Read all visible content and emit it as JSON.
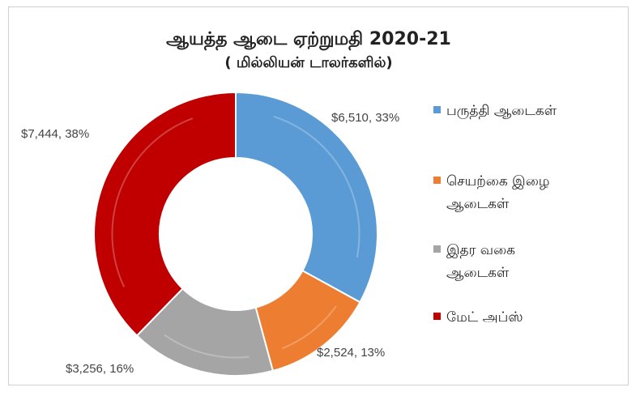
{
  "chart_data": {
    "type": "pie",
    "title": "ஆயத்த ஆடை ஏற்றுமதி 2020-21",
    "subtitle": "( மில்லியன் டாலர்களில்)",
    "legend_position": "right",
    "series": [
      {
        "name": "பருத்தி ஆடைகள்",
        "value": 6510,
        "label": "$6,510, 33%",
        "color": "#5b9bd5"
      },
      {
        "name": "செயற்கை இழை ஆடைகள்",
        "value": 2524,
        "label": "$2,524, 13%",
        "color": "#ed7d31"
      },
      {
        "name": "இதர வகை ஆடைகள்",
        "value": 3256,
        "label": "$3,256, 16%",
        "color": "#a5a5a5"
      },
      {
        "name": "மேட் அப்ஸ்",
        "value": 7444,
        "label": "$7,444, 38%",
        "color": "#c00000"
      }
    ]
  }
}
